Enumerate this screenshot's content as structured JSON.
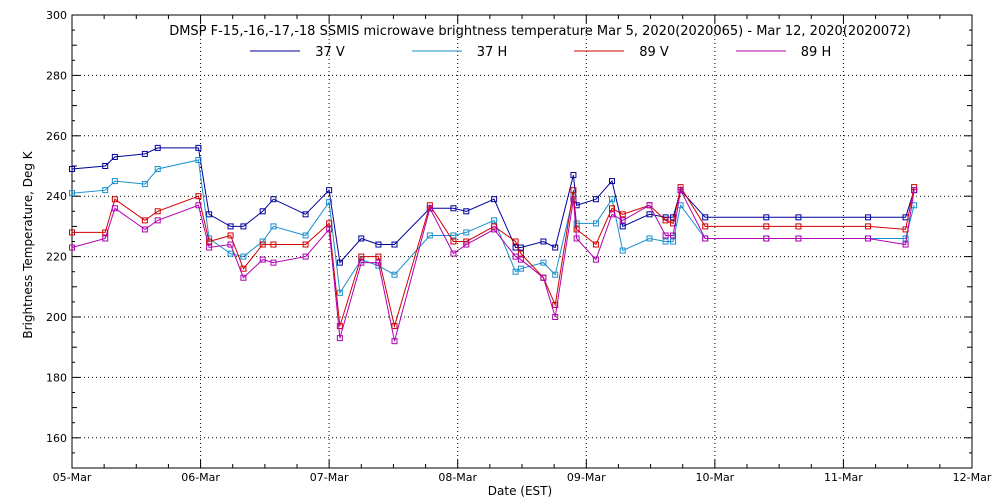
{
  "chart_data": {
    "type": "line",
    "title": "DMSP F-15,-16,-17,-18 SSMIS microwave brightness temperature Mar  5, 2020(2020065) - Mar 12, 2020(2020072)",
    "xlabel": "Date (EST)",
    "ylabel": "Brightness Temperature, Deg K",
    "xlim": [
      "2020-03-05T00:00",
      "2020-03-12T00:00"
    ],
    "ylim": [
      150,
      300
    ],
    "x_ticks": [
      "05-Mar",
      "06-Mar",
      "07-Mar",
      "08-Mar",
      "09-Mar",
      "10-Mar",
      "11-Mar",
      "12-Mar"
    ],
    "y_ticks": [
      "160",
      "180",
      "200",
      "220",
      "240",
      "260",
      "280",
      "300"
    ],
    "grid": true,
    "legend_position": "top-center",
    "x": [
      "2020-03-05T00:00",
      "2020-03-05T06:12",
      "2020-03-05T08:00",
      "2020-03-05T13:36",
      "2020-03-05T16:00",
      "2020-03-05T23:36",
      "2020-03-06T01:36",
      "2020-03-06T05:36",
      "2020-03-06T08:00",
      "2020-03-06T11:36",
      "2020-03-06T13:36",
      "2020-03-06T19:36",
      "2020-03-07T00:00",
      "2020-03-07T02:00",
      "2020-03-07T06:00",
      "2020-03-07T09:12",
      "2020-03-07T12:12",
      "2020-03-07T18:48",
      "2020-03-07T23:12",
      "2020-03-08T01:36",
      "2020-03-08T06:48",
      "2020-03-08T10:48",
      "2020-03-08T11:48",
      "2020-03-08T16:00",
      "2020-03-08T18:12",
      "2020-03-08T21:36",
      "2020-03-08T22:12",
      "2020-03-09T01:48",
      "2020-03-09T04:48",
      "2020-03-09T06:48",
      "2020-03-09T11:48",
      "2020-03-09T14:48",
      "2020-03-09T16:12",
      "2020-03-09T17:36",
      "2020-03-09T22:12",
      "2020-03-10T09:36",
      "2020-03-10T15:36",
      "2020-03-11T04:36",
      "2020-03-11T11:36",
      "2020-03-11T13:12"
    ],
    "series": [
      {
        "name": "37 V",
        "color": "#00009c",
        "values": [
          249,
          250,
          253,
          254,
          256,
          256,
          234,
          230,
          230,
          235,
          239,
          234,
          242,
          218,
          226,
          224,
          224,
          236,
          236,
          235,
          239,
          223,
          223,
          225,
          223,
          247,
          237,
          239,
          245,
          230,
          234,
          233,
          233,
          242,
          233,
          233,
          233,
          233,
          233,
          242
        ]
      },
      {
        "name": "37 H",
        "color": "#1a8fcf",
        "values": [
          241,
          242,
          245,
          244,
          249,
          252,
          226,
          221,
          220,
          225,
          230,
          227,
          238,
          208,
          219,
          217,
          214,
          227,
          227,
          228,
          232,
          215,
          216,
          218,
          214,
          240,
          231,
          231,
          239,
          222,
          226,
          225,
          225,
          237,
          226,
          226,
          226,
          226,
          226,
          237
        ]
      },
      {
        "name": "89 V",
        "color": "#d00000",
        "values": [
          228,
          228,
          239,
          232,
          235,
          240,
          225,
          227,
          216,
          224,
          224,
          224,
          231,
          197,
          220,
          220,
          197,
          237,
          225,
          225,
          230,
          225,
          221,
          213,
          204,
          242,
          229,
          224,
          236,
          234,
          237,
          232,
          231,
          243,
          230,
          230,
          230,
          230,
          229,
          243
        ]
      },
      {
        "name": "89 H",
        "color": "#b000b0",
        "values": [
          223,
          226,
          236,
          229,
          232,
          237,
          223,
          224,
          213,
          219,
          218,
          220,
          229,
          193,
          218,
          218,
          192,
          236,
          221,
          224,
          229,
          220,
          219,
          213,
          200,
          239,
          226,
          219,
          234,
          232,
          237,
          227,
          227,
          242,
          226,
          226,
          226,
          226,
          224,
          242
        ]
      }
    ]
  }
}
